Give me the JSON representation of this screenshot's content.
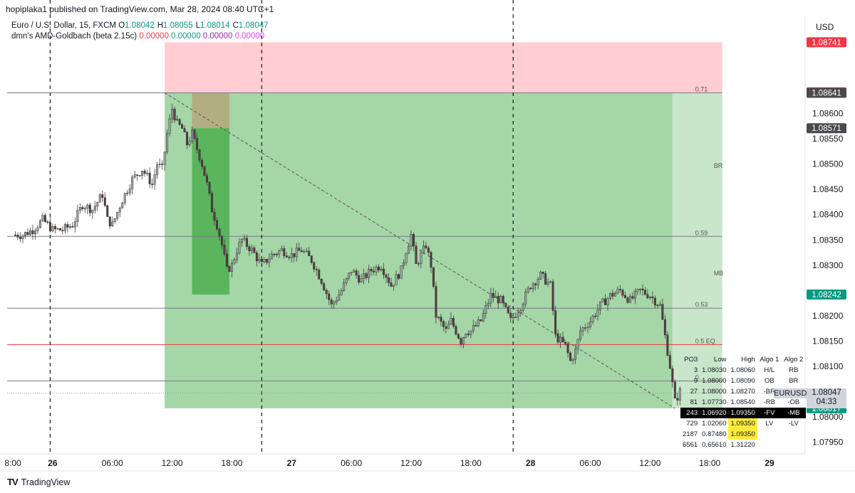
{
  "header": "hopiplaka1 published on TradingView.com, Mar 28, 2024 08:40 UTC+1",
  "legend": {
    "symbol": "Euro / U.S. Dollar, 15, FXCM",
    "ohlc": [
      {
        "k": "O",
        "v": "1.08042"
      },
      {
        "k": "H",
        "v": "1.08055"
      },
      {
        "k": "L",
        "v": "1.08014"
      },
      {
        "k": "C",
        "v": "1.08047"
      }
    ],
    "indicator": "dmn's AMD-Goldbach (beta 2.15c)",
    "indicator_values": [
      {
        "v": "0.00000",
        "color": "#f23645"
      },
      {
        "v": "0.00000",
        "color": "#089981"
      },
      {
        "v": "0.00000",
        "color": "#9c27b0"
      },
      {
        "v": "0.00000",
        "color": "#e040fb"
      }
    ]
  },
  "currency": "USD",
  "footer": "TradingView",
  "footer_logo": "TV",
  "colors": {
    "up": "#9fa8a4",
    "down": "#5b3b44",
    "stop_zone": "#ffcdd2",
    "target_zone": "#a5d6a7",
    "target_zone_light": "#c8e6c9",
    "box_dark_green": "#4caf50",
    "box_tan": "#b5a77a"
  },
  "chart_data": {
    "type": "candlestick",
    "symbol": "EURUSD",
    "timeframe": "15",
    "ylim": [
      1.0792,
      1.0875
    ],
    "y_ticks": [
      1.0795,
      1.08,
      1.0805,
      1.081,
      1.0815,
      1.082,
      1.0825,
      1.083,
      1.0835,
      1.084,
      1.0845,
      1.085,
      1.0855,
      1.086,
      1.0865,
      1.087
    ],
    "y_tick_labels": [
      "1.07950",
      "1.08000",
      "",
      "1.08100",
      "1.08150",
      "1.08200",
      "",
      "1.08300",
      "1.08350",
      "1.08400",
      "1.08450",
      "1.08500",
      "1.08550",
      "1.08600",
      "",
      ""
    ],
    "x_ticks": [
      {
        "label": "8:00",
        "t": 0,
        "bold": false
      },
      {
        "label": "26",
        "t": 16,
        "bold": true
      },
      {
        "label": "06:00",
        "t": 40,
        "bold": false
      },
      {
        "label": "12:00",
        "t": 64,
        "bold": false
      },
      {
        "label": "18:00",
        "t": 88,
        "bold": false
      },
      {
        "label": "27",
        "t": 112,
        "bold": true
      },
      {
        "label": "06:00",
        "t": 136,
        "bold": false
      },
      {
        "label": "12:00",
        "t": 160,
        "bold": false
      },
      {
        "label": "18:00",
        "t": 184,
        "bold": false
      },
      {
        "label": "28",
        "t": 208,
        "bold": true
      },
      {
        "label": "06:00",
        "t": 232,
        "bold": false
      },
      {
        "label": "12:00",
        "t": 256,
        "bold": false
      },
      {
        "label": "18:00",
        "t": 280,
        "bold": false
      },
      {
        "label": "29",
        "t": 304,
        "bold": true
      }
    ],
    "close_path": [
      [
        0,
        1.0836
      ],
      [
        4,
        1.0836
      ],
      [
        8,
        1.0837
      ],
      [
        12,
        1.0839
      ],
      [
        16,
        1.0837
      ],
      [
        20,
        1.0837
      ],
      [
        24,
        1.0838
      ],
      [
        28,
        1.0842
      ],
      [
        32,
        1.0841
      ],
      [
        36,
        1.0844
      ],
      [
        38,
        1.0839
      ],
      [
        40,
        1.0838
      ],
      [
        44,
        1.0843
      ],
      [
        48,
        1.0847
      ],
      [
        52,
        1.0849
      ],
      [
        56,
        1.0846
      ],
      [
        58,
        1.085
      ],
      [
        60,
        1.0849
      ],
      [
        62,
        1.0856
      ],
      [
        64,
        1.0861
      ],
      [
        66,
        1.0858
      ],
      [
        68,
        1.0857
      ],
      [
        70,
        1.0854
      ],
      [
        72,
        1.0856
      ],
      [
        74,
        1.0853
      ],
      [
        76,
        1.085
      ],
      [
        78,
        1.0846
      ],
      [
        80,
        1.0841
      ],
      [
        82,
        1.0838
      ],
      [
        84,
        1.0834
      ],
      [
        86,
        1.0829
      ],
      [
        88,
        1.083
      ],
      [
        90,
        1.0833
      ],
      [
        92,
        1.0835
      ],
      [
        96,
        1.0833
      ],
      [
        100,
        1.083
      ],
      [
        104,
        1.0832
      ],
      [
        108,
        1.0833
      ],
      [
        112,
        1.0832
      ],
      [
        116,
        1.0833
      ],
      [
        120,
        1.0831
      ],
      [
        124,
        1.0827
      ],
      [
        128,
        1.0822
      ],
      [
        132,
        1.0825
      ],
      [
        136,
        1.0829
      ],
      [
        140,
        1.0827
      ],
      [
        144,
        1.0829
      ],
      [
        148,
        1.083
      ],
      [
        152,
        1.0826
      ],
      [
        156,
        1.0829
      ],
      [
        158,
        1.0833
      ],
      [
        160,
        1.0836
      ],
      [
        162,
        1.083
      ],
      [
        164,
        1.0832
      ],
      [
        166,
        1.0834
      ],
      [
        168,
        1.083
      ],
      [
        170,
        1.082
      ],
      [
        174,
        1.0817
      ],
      [
        176,
        1.0819
      ],
      [
        180,
        1.0815
      ],
      [
        182,
        1.0817
      ],
      [
        184,
        1.0817
      ],
      [
        188,
        1.0819
      ],
      [
        192,
        1.0824
      ],
      [
        196,
        1.0823
      ],
      [
        200,
        1.0819
      ],
      [
        204,
        1.0822
      ],
      [
        208,
        1.0826
      ],
      [
        212,
        1.0828
      ],
      [
        214,
        1.0827
      ],
      [
        216,
        1.0826
      ],
      [
        218,
        1.0816
      ],
      [
        220,
        1.0815
      ],
      [
        222,
        1.0814
      ],
      [
        224,
        1.0811
      ],
      [
        226,
        1.0813
      ],
      [
        228,
        1.0817
      ],
      [
        232,
        1.0819
      ],
      [
        236,
        1.0822
      ],
      [
        240,
        1.0824
      ],
      [
        244,
        1.0825
      ],
      [
        248,
        1.0823
      ],
      [
        252,
        1.0825
      ],
      [
        256,
        1.0824
      ],
      [
        260,
        1.0822
      ],
      [
        262,
        1.0816
      ],
      [
        264,
        1.081
      ],
      [
        266,
        1.0803
      ],
      [
        268,
        1.0805
      ]
    ],
    "horizontal_levels": [
      {
        "price": 1.08641,
        "label": "0.71",
        "color": "#787b86"
      },
      {
        "price": 1.08357,
        "label": "0.59",
        "color": "#787b86"
      },
      {
        "price": 1.08215,
        "label": "0.53",
        "color": "#787b86"
      },
      {
        "price": 1.08143,
        "label": "0.5 EQ",
        "color": "#f23645"
      },
      {
        "price": 1.08071,
        "label": "0.",
        "color": "#787b86"
      }
    ],
    "zone_labels": [
      {
        "price": 1.08497,
        "label": "BR"
      },
      {
        "price": 1.08284,
        "label": "MB"
      }
    ],
    "price_tags": [
      {
        "price": 1.08741,
        "label": "1.08741",
        "color": "#f23645"
      },
      {
        "price": 1.08642,
        "label": "1.08642",
        "color": "#f23645"
      },
      {
        "price": 1.08641,
        "label": "1.08641",
        "color": "#4a4a4a"
      },
      {
        "price": 1.08571,
        "label": "1.08571",
        "color": "#4a4a4a"
      },
      {
        "price": 1.08242,
        "label": "1.08242",
        "color": "#089981"
      },
      {
        "price": 1.08017,
        "label": "1.08017",
        "color": "#089981"
      }
    ],
    "current_price": {
      "symbol": "EURUSD",
      "label": "1.08047",
      "countdown": "04:33",
      "price": 1.08047
    },
    "risk_reward": {
      "entry": 1.08641,
      "stop": 1.08741,
      "target": 1.08017,
      "t_start": 61,
      "t_end": 285,
      "t_light_start": 265
    },
    "zones": [
      {
        "t_start": 72,
        "t_end": 87,
        "price_top": 1.08641,
        "price_bottom": 1.08571,
        "color_key": "box_tan"
      },
      {
        "t_start": 72,
        "t_end": 87,
        "price_top": 1.08571,
        "price_bottom": 1.08242,
        "color_key": "box_dark_green"
      }
    ],
    "trendline": {
      "t1": 61,
      "p1": 1.08641,
      "t2": 266,
      "p2": 1.08017
    },
    "vertical_lines_t": [
      15,
      100,
      201
    ]
  },
  "po3_table": {
    "headers": [
      "PO3",
      "Low",
      "High",
      "Algo 1",
      "Algo 2"
    ],
    "rows": [
      {
        "po3": "3",
        "low": "1.08030",
        "high": "1.08060",
        "algo1": "H/L",
        "algo2": "RB",
        "highlight": false,
        "yellow": false
      },
      {
        "po3": "9",
        "low": "1.08000",
        "high": "1.08090",
        "algo1": "OB",
        "algo2": "BR",
        "highlight": false,
        "yellow": false
      },
      {
        "po3": "27",
        "low": "1.08000",
        "high": "1.08270",
        "algo1": "-BR",
        "algo2": "",
        "highlight": false,
        "yellow": false
      },
      {
        "po3": "81",
        "low": "1.07730",
        "high": "1.08540",
        "algo1": "-RB",
        "algo2": "-OB",
        "highlight": false,
        "yellow": false
      },
      {
        "po3": "243",
        "low": "1.06920",
        "high": "1.09350",
        "algo1": "-FV",
        "algo2": "-MB",
        "highlight": true,
        "yellow": false
      },
      {
        "po3": "729",
        "low": "1.02060",
        "high": "1.09350",
        "algo1": "LV",
        "algo2": "-LV",
        "highlight": false,
        "yellow": true
      },
      {
        "po3": "2187",
        "low": "0.87480",
        "high": "1.09350",
        "algo1": "",
        "algo2": "",
        "highlight": false,
        "yellow": true
      },
      {
        "po3": "6561",
        "low": "0.65610",
        "high": "1.31220",
        "algo1": "",
        "algo2": "",
        "highlight": false,
        "yellow": false
      }
    ]
  }
}
